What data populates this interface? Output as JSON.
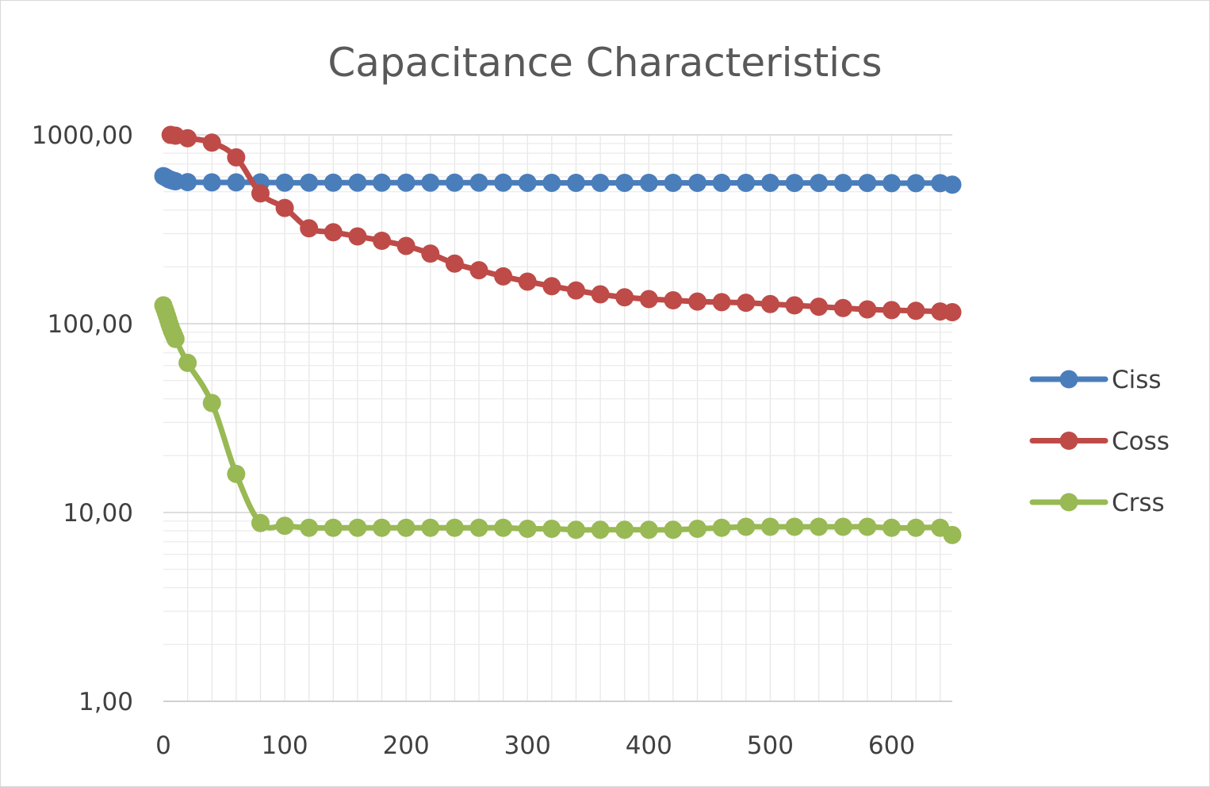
{
  "chart_data": {
    "type": "line",
    "title": "Capacitance Characteristics",
    "xlabel": "",
    "ylabel": "",
    "y_scale": "log",
    "xlim": [
      0,
      650
    ],
    "ylim": [
      1,
      1000
    ],
    "x_ticks": [
      0,
      100,
      200,
      300,
      400,
      500,
      600
    ],
    "x_tick_labels": [
      "0",
      "100",
      "200",
      "300",
      "400",
      "500",
      "600"
    ],
    "y_ticks": [
      1,
      10,
      100,
      1000
    ],
    "y_tick_labels": [
      "1,00",
      "10,00",
      "100,00",
      "1000,00"
    ],
    "grid": true,
    "legend_position": "right",
    "series": [
      {
        "name": "Ciss",
        "color": "#4a7ebb",
        "x": [
          0,
          1,
          2,
          3,
          4,
          5,
          6,
          7,
          8,
          9,
          10,
          20,
          40,
          60,
          80,
          100,
          120,
          140,
          160,
          180,
          200,
          220,
          240,
          260,
          280,
          300,
          320,
          340,
          360,
          380,
          400,
          420,
          440,
          460,
          480,
          500,
          520,
          540,
          560,
          580,
          600,
          620,
          640,
          650
        ],
        "y": [
          605,
          600,
          595,
          590,
          585,
          580,
          578,
          575,
          572,
          570,
          568,
          562,
          560,
          560,
          560,
          558,
          558,
          558,
          558,
          558,
          558,
          558,
          558,
          558,
          558,
          557,
          557,
          557,
          557,
          557,
          557,
          557,
          557,
          557,
          557,
          557,
          556,
          556,
          556,
          556,
          555,
          555,
          555,
          545
        ]
      },
      {
        "name": "Coss",
        "color": "#be4b48",
        "x": [
          6,
          10,
          20,
          40,
          60,
          80,
          100,
          120,
          140,
          160,
          180,
          200,
          220,
          240,
          260,
          280,
          300,
          320,
          340,
          360,
          380,
          400,
          420,
          440,
          460,
          480,
          500,
          520,
          540,
          560,
          580,
          600,
          620,
          640,
          650
        ],
        "y": [
          1000,
          990,
          960,
          910,
          760,
          490,
          410,
          320,
          305,
          290,
          275,
          258,
          235,
          208,
          192,
          178,
          167,
          158,
          150,
          143,
          138,
          135,
          133,
          131,
          130,
          129,
          127,
          125,
          123,
          121,
          119,
          118,
          117,
          116,
          115
        ]
      },
      {
        "name": "Crss",
        "color": "#98b954",
        "x": [
          0,
          1,
          2,
          3,
          4,
          5,
          6,
          7,
          8,
          9,
          10,
          20,
          40,
          60,
          80,
          100,
          120,
          140,
          160,
          180,
          200,
          220,
          240,
          260,
          280,
          300,
          320,
          340,
          360,
          380,
          400,
          420,
          440,
          460,
          480,
          500,
          520,
          540,
          560,
          580,
          600,
          620,
          640,
          650
        ],
        "y": [
          125,
          120,
          115,
          110,
          105,
          100,
          96,
          92,
          89,
          86,
          83,
          62,
          38,
          16,
          8.8,
          8.5,
          8.3,
          8.3,
          8.3,
          8.3,
          8.3,
          8.3,
          8.3,
          8.3,
          8.3,
          8.2,
          8.2,
          8.1,
          8.1,
          8.1,
          8.1,
          8.1,
          8.2,
          8.3,
          8.4,
          8.4,
          8.4,
          8.4,
          8.4,
          8.4,
          8.3,
          8.3,
          8.3,
          7.6
        ]
      }
    ]
  }
}
